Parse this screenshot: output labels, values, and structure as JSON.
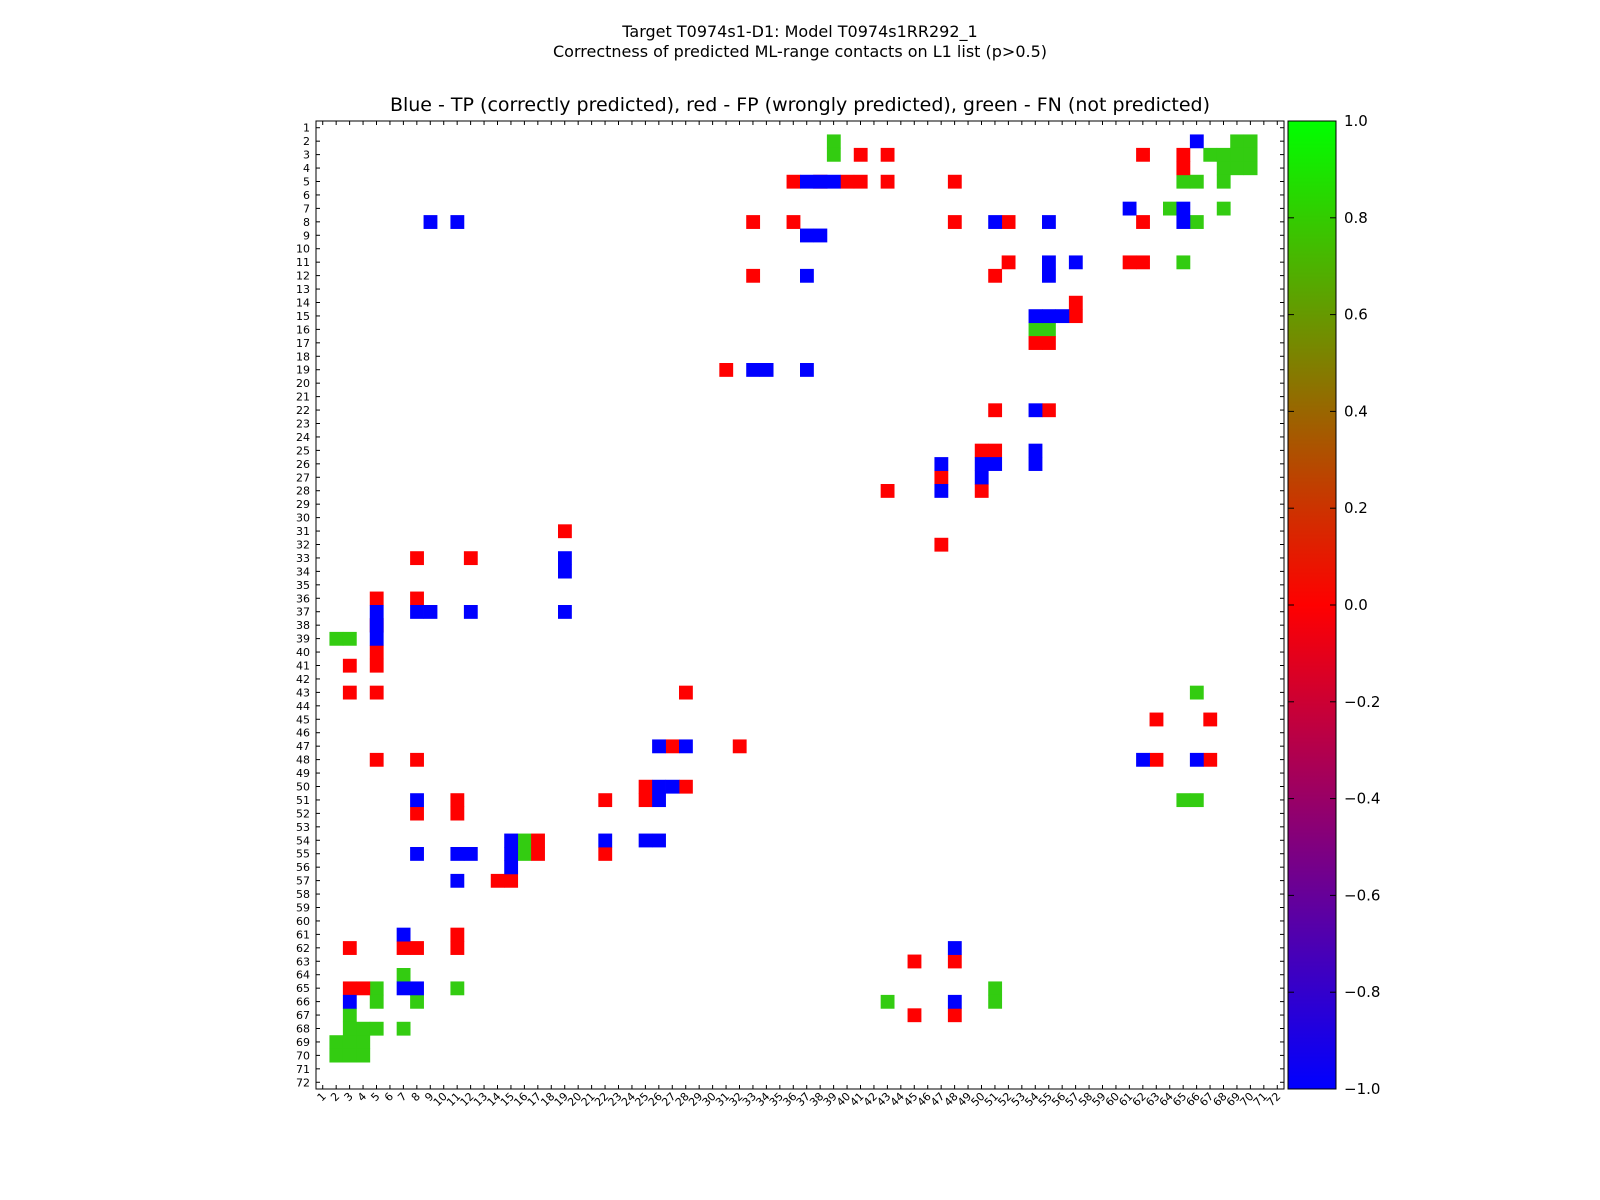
{
  "chart_data": {
    "type": "heatmap",
    "suptitle_line1": "Target T0974s1-D1: Model T0974s1RR292_1",
    "suptitle_line2": "Correctness of predicted ML-range contacts on L1 list (p>0.5)",
    "title": "Blue - TP (correctly predicted), red - FP (wrongly predicted), green - FN (not predicted)",
    "xlabel": "",
    "ylabel": "",
    "n": 72,
    "x_range": [
      1,
      72
    ],
    "y_range": [
      1,
      72
    ],
    "colorbar": {
      "range": [
        -1.0,
        1.0
      ],
      "ticks": [
        "1.0",
        "0.8",
        "0.6",
        "0.4",
        "0.2",
        "0.0",
        "−0.2",
        "−0.4",
        "−0.6",
        "−0.8",
        "−1.0"
      ],
      "tick_values": [
        1.0,
        0.8,
        0.6,
        0.4,
        0.2,
        0.0,
        -0.2,
        -0.4,
        -0.6,
        -0.8,
        -1.0
      ],
      "colors": [
        "#00ff00",
        "#ff0000",
        "#0000ff"
      ]
    },
    "category_colors": {
      "TP": "#0000ff",
      "FP": "#ff0000",
      "FN": "#33cc11"
    },
    "legend": {
      "TP": "Blue - correctly predicted",
      "FP": "red - wrongly predicted",
      "FN": "green - not predicted"
    },
    "cells": {
      "TP": [
        [
          5,
          37
        ],
        [
          5,
          38
        ],
        [
          8,
          9
        ],
        [
          8,
          11
        ],
        [
          9,
          37
        ],
        [
          9,
          38
        ],
        [
          12,
          37
        ],
        [
          19,
          33
        ],
        [
          19,
          34
        ],
        [
          19,
          37
        ],
        [
          7,
          61
        ],
        [
          8,
          51
        ],
        [
          8,
          55
        ],
        [
          8,
          65
        ],
        [
          11,
          55
        ],
        [
          12,
          55
        ],
        [
          11,
          57
        ],
        [
          2,
          66
        ],
        [
          5,
          39
        ],
        [
          7,
          65
        ],
        [
          15,
          54
        ],
        [
          15,
          55
        ],
        [
          15,
          56
        ],
        [
          22,
          54
        ],
        [
          25,
          54
        ],
        [
          26,
          54
        ],
        [
          26,
          47
        ],
        [
          26,
          50
        ],
        [
          26,
          51
        ],
        [
          27,
          50
        ],
        [
          28,
          47
        ],
        [
          33,
          19
        ],
        [
          34,
          19
        ],
        [
          37,
          5
        ],
        [
          37,
          8
        ],
        [
          37,
          9
        ],
        [
          37,
          12
        ],
        [
          37,
          19
        ],
        [
          38,
          5
        ],
        [
          39,
          5
        ],
        [
          47,
          26
        ],
        [
          47,
          28
        ],
        [
          48,
          62
        ],
        [
          48,
          66
        ],
        [
          50,
          26
        ],
        [
          50,
          27
        ],
        [
          51,
          26
        ],
        [
          51,
          8
        ],
        [
          54,
          22
        ],
        [
          54,
          25
        ],
        [
          54,
          26
        ],
        [
          54,
          15
        ],
        [
          55,
          8
        ],
        [
          55,
          11
        ],
        [
          55,
          12
        ],
        [
          55,
          15
        ],
        [
          56,
          15
        ],
        [
          57,
          11
        ],
        [
          61,
          7
        ],
        [
          62,
          48
        ],
        [
          65,
          7
        ],
        [
          65,
          8
        ],
        [
          66,
          3
        ],
        [
          66,
          48
        ]
      ],
      "FP": [
        [
          3,
          41
        ],
        [
          3,
          43
        ],
        [
          3,
          62
        ],
        [
          3,
          65
        ],
        [
          4,
          65
        ],
        [
          5,
          36
        ],
        [
          5,
          38
        ],
        [
          5,
          40
        ],
        [
          5,
          41
        ],
        [
          5,
          43
        ],
        [
          5,
          48
        ],
        [
          8,
          33
        ],
        [
          8,
          36
        ],
        [
          8,
          48
        ],
        [
          8,
          52
        ],
        [
          8,
          62
        ],
        [
          11,
          52
        ],
        [
          11,
          61
        ],
        [
          11,
          62
        ],
        [
          12,
          33
        ],
        [
          12,
          51
        ],
        [
          14,
          57
        ],
        [
          15,
          57
        ],
        [
          17,
          54
        ],
        [
          17,
          55
        ],
        [
          19,
          31
        ],
        [
          22,
          51
        ],
        [
          22,
          55
        ],
        [
          25,
          50
        ],
        [
          25,
          51
        ],
        [
          27,
          47
        ],
        [
          28,
          43
        ],
        [
          28,
          50
        ],
        [
          31,
          19
        ],
        [
          32,
          47
        ],
        [
          33,
          8
        ],
        [
          33,
          12
        ],
        [
          36,
          5
        ],
        [
          36,
          8
        ],
        [
          38,
          5
        ],
        [
          40,
          5
        ],
        [
          41,
          3
        ],
        [
          41,
          5
        ],
        [
          43,
          3
        ],
        [
          43,
          5
        ],
        [
          43,
          28
        ],
        [
          45,
          63
        ],
        [
          45,
          67
        ],
        [
          47,
          27
        ],
        [
          47,
          32
        ],
        [
          48,
          5
        ],
        [
          48,
          8
        ],
        [
          48,
          63
        ],
        [
          48,
          67
        ],
        [
          50,
          25
        ],
        [
          50,
          28
        ],
        [
          51,
          11
        ],
        [
          51,
          22
        ],
        [
          51,
          25
        ],
        [
          52,
          8
        ],
        [
          52,
          11
        ],
        [
          54,
          17
        ],
        [
          55,
          17
        ],
        [
          55,
          22
        ],
        [
          57,
          14
        ],
        [
          57,
          15
        ],
        [
          61,
          11
        ],
        [
          62,
          3
        ],
        [
          62,
          7
        ],
        [
          62,
          8
        ],
        [
          62,
          11
        ],
        [
          63,
          45
        ],
        [
          63,
          48
        ],
        [
          65,
          3
        ],
        [
          65,
          4
        ],
        [
          67,
          45
        ],
        [
          67,
          48
        ]
      ],
      "FN": [
        [
          2,
          39
        ],
        [
          3,
          39
        ],
        [
          2,
          69
        ],
        [
          2,
          70
        ],
        [
          3,
          67
        ],
        [
          3,
          68
        ],
        [
          3,
          69
        ],
        [
          3,
          70
        ],
        [
          4,
          68
        ],
        [
          4,
          69
        ],
        [
          4,
          70
        ],
        [
          5,
          65
        ],
        [
          5,
          66
        ],
        [
          5,
          68
        ],
        [
          7,
          64
        ],
        [
          7,
          68
        ],
        [
          8,
          66
        ],
        [
          11,
          65
        ],
        [
          16,
          54
        ],
        [
          16,
          55
        ],
        [
          39,
          2
        ],
        [
          39,
          3
        ],
        [
          43,
          66
        ],
        [
          51,
          65
        ],
        [
          51,
          66
        ],
        [
          54,
          16
        ],
        [
          55,
          16
        ],
        [
          64,
          7
        ],
        [
          65,
          5
        ],
        [
          65,
          11
        ],
        [
          65,
          51
        ],
        [
          66,
          5
        ],
        [
          66,
          8
        ],
        [
          66,
          43
        ],
        [
          66,
          51
        ],
        [
          67,
          3
        ],
        [
          68,
          3
        ],
        [
          68,
          4
        ],
        [
          68,
          5
        ],
        [
          68,
          7
        ],
        [
          69,
          2
        ],
        [
          69,
          3
        ],
        [
          69,
          4
        ],
        [
          70,
          2
        ],
        [
          70,
          3
        ],
        [
          70,
          4
        ]
      ]
    }
  }
}
